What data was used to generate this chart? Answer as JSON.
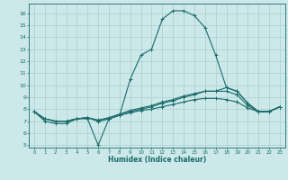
{
  "xlabel": "Humidex (Indice chaleur)",
  "ylabel": "",
  "bg_color": "#cce8e8",
  "line_color": "#1a6b6b",
  "grid_color": "#aacfcf",
  "xlim": [
    -0.5,
    23.5
  ],
  "ylim": [
    4.8,
    16.8
  ],
  "yticks": [
    5,
    6,
    7,
    8,
    9,
    10,
    11,
    12,
    13,
    14,
    15,
    16
  ],
  "xticks": [
    0,
    1,
    2,
    3,
    4,
    5,
    6,
    7,
    8,
    9,
    10,
    11,
    12,
    13,
    14,
    15,
    16,
    17,
    18,
    19,
    20,
    21,
    22,
    23
  ],
  "series": [
    {
      "x": [
        0,
        1,
        2,
        3,
        4,
        5,
        6,
        7,
        8,
        9,
        10,
        11,
        12,
        13,
        14,
        15,
        16,
        17,
        18,
        19,
        20,
        21,
        22,
        23
      ],
      "y": [
        7.8,
        7.0,
        6.8,
        6.8,
        7.2,
        7.2,
        5.0,
        7.2,
        7.5,
        10.5,
        12.5,
        13.0,
        15.5,
        16.2,
        16.2,
        15.8,
        14.8,
        12.5,
        9.8,
        9.5,
        8.5,
        7.8,
        7.8,
        8.2
      ]
    },
    {
      "x": [
        0,
        1,
        2,
        3,
        4,
        5,
        6,
        7,
        8,
        9,
        10,
        11,
        12,
        13,
        14,
        15,
        16,
        17,
        18,
        19,
        20,
        21,
        22,
        23
      ],
      "y": [
        7.8,
        7.2,
        7.0,
        7.0,
        7.2,
        7.3,
        7.0,
        7.2,
        7.5,
        7.8,
        8.0,
        8.2,
        8.5,
        8.7,
        9.0,
        9.2,
        9.5,
        9.5,
        9.8,
        9.5,
        8.5,
        7.8,
        7.8,
        8.2
      ]
    },
    {
      "x": [
        0,
        1,
        2,
        3,
        4,
        5,
        6,
        7,
        8,
        9,
        10,
        11,
        12,
        13,
        14,
        15,
        16,
        17,
        18,
        19,
        20,
        21,
        22,
        23
      ],
      "y": [
        7.8,
        7.2,
        7.0,
        7.0,
        7.2,
        7.3,
        7.1,
        7.3,
        7.6,
        7.9,
        8.1,
        8.3,
        8.6,
        8.8,
        9.1,
        9.3,
        9.5,
        9.5,
        9.5,
        9.2,
        8.3,
        7.8,
        7.8,
        8.2
      ]
    },
    {
      "x": [
        0,
        1,
        2,
        3,
        4,
        5,
        6,
        7,
        8,
        9,
        10,
        11,
        12,
        13,
        14,
        15,
        16,
        17,
        18,
        19,
        20,
        21,
        22,
        23
      ],
      "y": [
        7.8,
        7.2,
        7.0,
        7.0,
        7.2,
        7.3,
        7.0,
        7.2,
        7.5,
        7.7,
        7.9,
        8.0,
        8.2,
        8.4,
        8.6,
        8.8,
        8.9,
        8.9,
        8.8,
        8.6,
        8.1,
        7.8,
        7.8,
        8.2
      ]
    }
  ]
}
